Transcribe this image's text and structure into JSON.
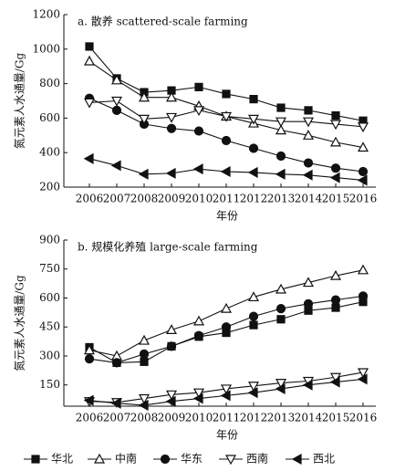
{
  "chart_data": [
    {
      "type": "line",
      "annotation": "a. 散养 scattered-scale farming",
      "x_label": "年份",
      "y_label": "氮元素人水通量/Gg",
      "categories": [
        "2006",
        "2007",
        "2008",
        "2009",
        "2010",
        "2011",
        "2012",
        "2013",
        "2014",
        "2015",
        "2016"
      ],
      "ylim": [
        200,
        1200
      ],
      "yticks": [
        200,
        400,
        600,
        800,
        1000,
        1200
      ],
      "series": [
        {
          "name": "华北",
          "color": "#111111",
          "marker": "square",
          "values": [
            1015,
            830,
            750,
            760,
            780,
            740,
            710,
            660,
            645,
            615,
            585
          ]
        },
        {
          "name": "中南",
          "color": "#111111",
          "marker": "triangle-up",
          "values": [
            930,
            820,
            720,
            720,
            670,
            610,
            570,
            530,
            500,
            460,
            430
          ]
        },
        {
          "name": "华东",
          "color": "#111111",
          "marker": "circle",
          "values": [
            715,
            645,
            565,
            540,
            525,
            470,
            425,
            380,
            340,
            310,
            290
          ]
        },
        {
          "name": "西南",
          "color": "#111111",
          "marker": "triangle-down",
          "values": [
            690,
            700,
            595,
            605,
            645,
            610,
            595,
            580,
            580,
            565,
            550
          ]
        },
        {
          "name": "西北",
          "color": "#111111",
          "marker": "triangle-left",
          "values": [
            365,
            325,
            275,
            280,
            305,
            290,
            285,
            275,
            270,
            255,
            240
          ]
        }
      ]
    },
    {
      "type": "line",
      "annotation": "b. 规模化养殖 large-scale farming",
      "x_label": "年份",
      "y_label": "氮元素人水通量/Gg",
      "categories": [
        "2006",
        "2007",
        "2008",
        "2009",
        "2010",
        "2011",
        "2012",
        "2013",
        "2014",
        "2015",
        "2016"
      ],
      "ylim": [
        40,
        900
      ],
      "yticks": [
        150,
        300,
        450,
        600,
        750,
        900
      ],
      "series": [
        {
          "color": "#111111",
          "marker": "square",
          "values": [
            345,
            265,
            270,
            350,
            400,
            420,
            460,
            490,
            535,
            550,
            580
          ]
        },
        {
          "color": "#111111",
          "marker": "triangle-up",
          "values": [
            330,
            300,
            380,
            435,
            480,
            545,
            605,
            645,
            680,
            715,
            745
          ]
        },
        {
          "color": "#111111",
          "marker": "circle",
          "values": [
            285,
            265,
            310,
            350,
            405,
            450,
            505,
            545,
            570,
            590,
            610
          ]
        },
        {
          "color": "#111111",
          "marker": "triangle-down",
          "values": [
            65,
            60,
            80,
            100,
            110,
            130,
            145,
            160,
            170,
            190,
            215
          ]
        },
        {
          "color": "#111111",
          "marker": "triangle-left",
          "values": [
            70,
            55,
            45,
            65,
            80,
            95,
            110,
            130,
            150,
            165,
            180
          ]
        }
      ]
    }
  ]
}
